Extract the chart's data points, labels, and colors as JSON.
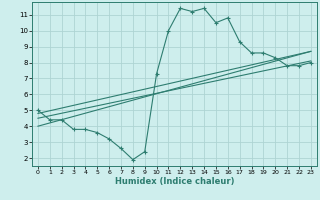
{
  "xlabel": "Humidex (Indice chaleur)",
  "bg_color": "#ceeeed",
  "grid_color": "#aed4d3",
  "line_color": "#2e7d70",
  "xlim": [
    -0.5,
    23.5
  ],
  "ylim": [
    1.5,
    11.8
  ],
  "xticks": [
    0,
    1,
    2,
    3,
    4,
    5,
    6,
    7,
    8,
    9,
    10,
    11,
    12,
    13,
    14,
    15,
    16,
    17,
    18,
    19,
    20,
    21,
    22,
    23
  ],
  "yticks": [
    2,
    3,
    4,
    5,
    6,
    7,
    8,
    9,
    10,
    11
  ],
  "main_x": [
    0,
    1,
    2,
    3,
    4,
    5,
    6,
    7,
    8,
    9,
    10,
    11,
    12,
    13,
    14,
    15,
    16,
    17,
    18,
    19,
    20,
    21,
    22,
    23
  ],
  "main_y": [
    5.0,
    4.4,
    4.4,
    3.8,
    3.8,
    3.6,
    3.2,
    2.6,
    1.9,
    2.4,
    7.3,
    10.0,
    11.4,
    11.2,
    11.4,
    10.5,
    10.8,
    9.3,
    8.6,
    8.6,
    8.3,
    7.8,
    7.8,
    8.0
  ],
  "line2_x": [
    0,
    23
  ],
  "line2_y": [
    4.8,
    8.7
  ],
  "line3_x": [
    0,
    23
  ],
  "line3_y": [
    4.5,
    8.1
  ],
  "line4_x": [
    0,
    23
  ],
  "line4_y": [
    4.0,
    8.7
  ]
}
